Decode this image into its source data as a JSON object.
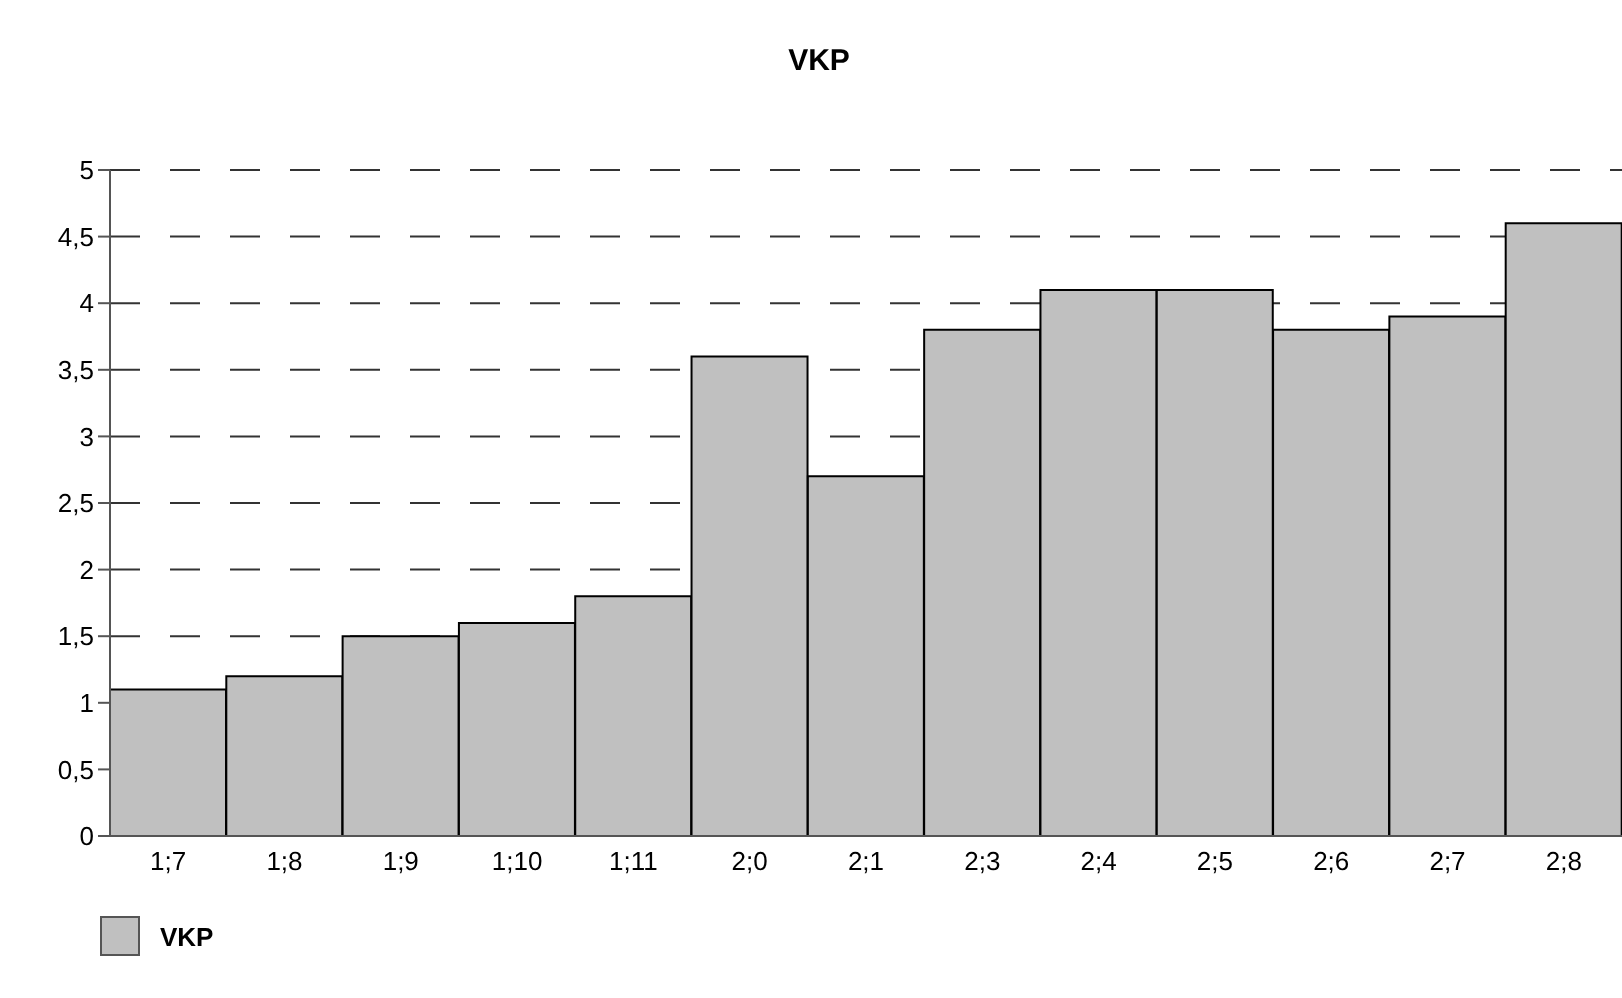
{
  "chart_data": {
    "type": "bar",
    "title": "VKP",
    "categories": [
      "1;7",
      "1;8",
      "1;9",
      "1;10",
      "1;11",
      "2;0",
      "2;1",
      "2;3",
      "2;4",
      "2;5",
      "2;6",
      "2;7",
      "2;8"
    ],
    "series": [
      {
        "name": "VKP",
        "color": "#c0c0c0",
        "values": [
          1.1,
          1.2,
          1.5,
          1.6,
          1.8,
          3.6,
          2.7,
          3.8,
          4.1,
          4.1,
          3.8,
          3.9,
          4.6
        ]
      }
    ],
    "ylim": [
      0,
      5
    ],
    "yticks": [
      0,
      {
        "value": 0.5,
        "label": "0,5"
      },
      1,
      {
        "value": 1.5,
        "label": "1,5"
      },
      2,
      {
        "value": 2.5,
        "label": "2,5"
      },
      3,
      {
        "value": 3.5,
        "label": "3,5"
      },
      4,
      {
        "value": 4.5,
        "label": "4,5"
      },
      5
    ],
    "grid": "y",
    "legend": "bottom left"
  }
}
